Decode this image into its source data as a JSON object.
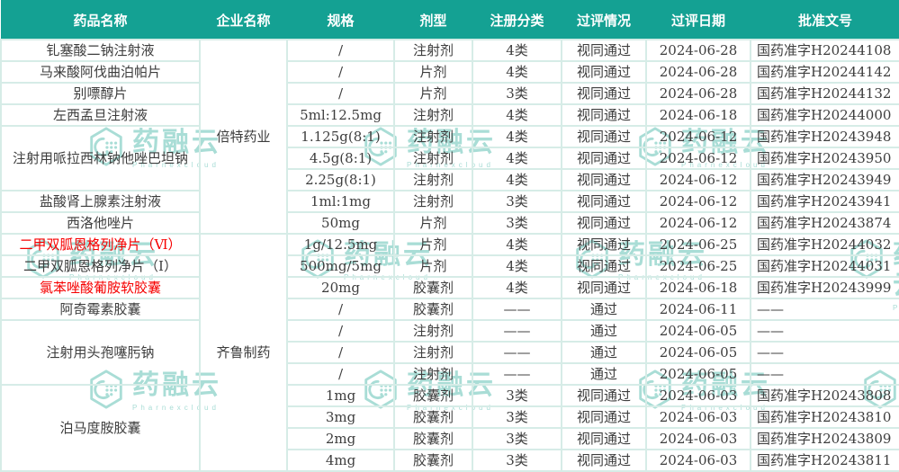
{
  "colors": {
    "header_bg": "#14a193",
    "header_text": "#ffffff",
    "border": "#d6ece7",
    "text": "#3d3d3d",
    "red_text": "#f60000",
    "watermark": "#a9ddd6"
  },
  "watermark": {
    "text": "药融云",
    "subtext": "Pharnexcloud"
  },
  "table": {
    "columns": [
      "药品名称",
      "企业名称",
      "规格",
      "剂型",
      "注册分类",
      "过评情况",
      "过评日期",
      "批准文号"
    ],
    "rows": [
      {
        "name": "钆塞酸二钠注射液",
        "name_span": 1,
        "red": false,
        "company": "倍特药业",
        "company_span": 9,
        "spec": "/",
        "form": "注射剂",
        "reg_class": "4类",
        "status": "视同通过",
        "date": "2024-06-28",
        "approval": "国药准字H20244108"
      },
      {
        "name": "马来酸阿伐曲泊帕片",
        "name_span": 1,
        "red": false,
        "spec": "/",
        "form": "片剂",
        "reg_class": "4类",
        "status": "视同通过",
        "date": "2024-06-28",
        "approval": "国药准字H20244142"
      },
      {
        "name": "别嘌醇片",
        "name_span": 1,
        "red": false,
        "spec": "/",
        "form": "片剂",
        "reg_class": "3类",
        "status": "视同通过",
        "date": "2024-06-28",
        "approval": "国药准字H20244132"
      },
      {
        "name": "左西孟旦注射液",
        "name_span": 1,
        "red": false,
        "spec": "5ml:12.5mg",
        "form": "注射剂",
        "reg_class": "4类",
        "status": "视同通过",
        "date": "2024-06-18",
        "approval": "国药准字H20244000"
      },
      {
        "name": "注射用哌拉西林钠他唑巴坦钠",
        "name_span": 3,
        "red": false,
        "spec": "1.125g(8:1)",
        "form": "注射剂",
        "reg_class": "4类",
        "status": "视同通过",
        "date": "2024-06-12",
        "approval": "国药准字H20243948"
      },
      {
        "spec": "4.5g(8:1)",
        "form": "注射剂",
        "reg_class": "4类",
        "status": "视同通过",
        "date": "2024-06-12",
        "approval": "国药准字H20243950"
      },
      {
        "spec": "2.25g(8:1)",
        "form": "注射剂",
        "reg_class": "4类",
        "status": "视同通过",
        "date": "2024-06-12",
        "approval": "国药准字H20243949"
      },
      {
        "name": "盐酸肾上腺素注射液",
        "name_span": 1,
        "red": false,
        "spec": "1ml:1mg",
        "form": "注射剂",
        "reg_class": "3类",
        "status": "视同通过",
        "date": "2024-06-12",
        "approval": "国药准字H20243941"
      },
      {
        "name": "西洛他唑片",
        "name_span": 1,
        "red": false,
        "spec": "50mg",
        "form": "片剂",
        "reg_class": "3类",
        "status": "视同通过",
        "date": "2024-06-12",
        "approval": "国药准字H20243874"
      },
      {
        "name": "二甲双胍恩格列净片（Ⅵ）",
        "name_span": 1,
        "red": true,
        "company": "齐鲁制药",
        "company_span": 11,
        "spec": "1g/12.5mg",
        "form": "片剂",
        "reg_class": "4类",
        "status": "视同通过",
        "date": "2024-06-25",
        "approval": "国药准字H20244032"
      },
      {
        "name": "二甲双胍恩格列净片（Ⅰ）",
        "name_span": 1,
        "red": false,
        "spec": "500mg/5mg",
        "form": "片剂",
        "reg_class": "4类",
        "status": "视同通过",
        "date": "2024-06-25",
        "approval": "国药准字H20244031"
      },
      {
        "name": "氯苯唑酸葡胺软胶囊",
        "name_span": 1,
        "red": true,
        "spec": "20mg",
        "form": "胶囊剂",
        "reg_class": "4类",
        "status": "视同通过",
        "date": "2024-06-18",
        "approval": "国药准字H20243999"
      },
      {
        "name": "阿奇霉素胶囊",
        "name_span": 1,
        "red": false,
        "spec": "/",
        "form": "胶囊剂",
        "reg_class": "——",
        "status": "通过",
        "date": "2024-06-11",
        "approval": "——"
      },
      {
        "name": "注射用头孢噻肟钠",
        "name_span": 3,
        "red": false,
        "spec": "/",
        "form": "注射剂",
        "reg_class": "——",
        "status": "通过",
        "date": "2024-06-05",
        "approval": "——"
      },
      {
        "spec": "/",
        "form": "注射剂",
        "reg_class": "——",
        "status": "通过",
        "date": "2024-06-05",
        "approval": "——"
      },
      {
        "spec": "/",
        "form": "注射剂",
        "reg_class": "——",
        "status": "通过",
        "date": "2024-06-05",
        "approval": "——"
      },
      {
        "name": "泊马度胺胶囊",
        "name_span": 4,
        "red": false,
        "spec": "1mg",
        "form": "胶囊剂",
        "reg_class": "3类",
        "status": "视同通过",
        "date": "2024-06-03",
        "approval": "国药准字H20243808"
      },
      {
        "spec": "3mg",
        "form": "胶囊剂",
        "reg_class": "3类",
        "status": "视同通过",
        "date": "2024-06-03",
        "approval": "国药准字H20243810"
      },
      {
        "spec": "2mg",
        "form": "胶囊剂",
        "reg_class": "3类",
        "status": "视同通过",
        "date": "2024-06-03",
        "approval": "国药准字H20243809"
      },
      {
        "spec": "4mg",
        "form": "胶囊剂",
        "reg_class": "3类",
        "status": "视同通过",
        "date": "2024-06-03",
        "approval": "国药准字H20243811"
      }
    ]
  }
}
